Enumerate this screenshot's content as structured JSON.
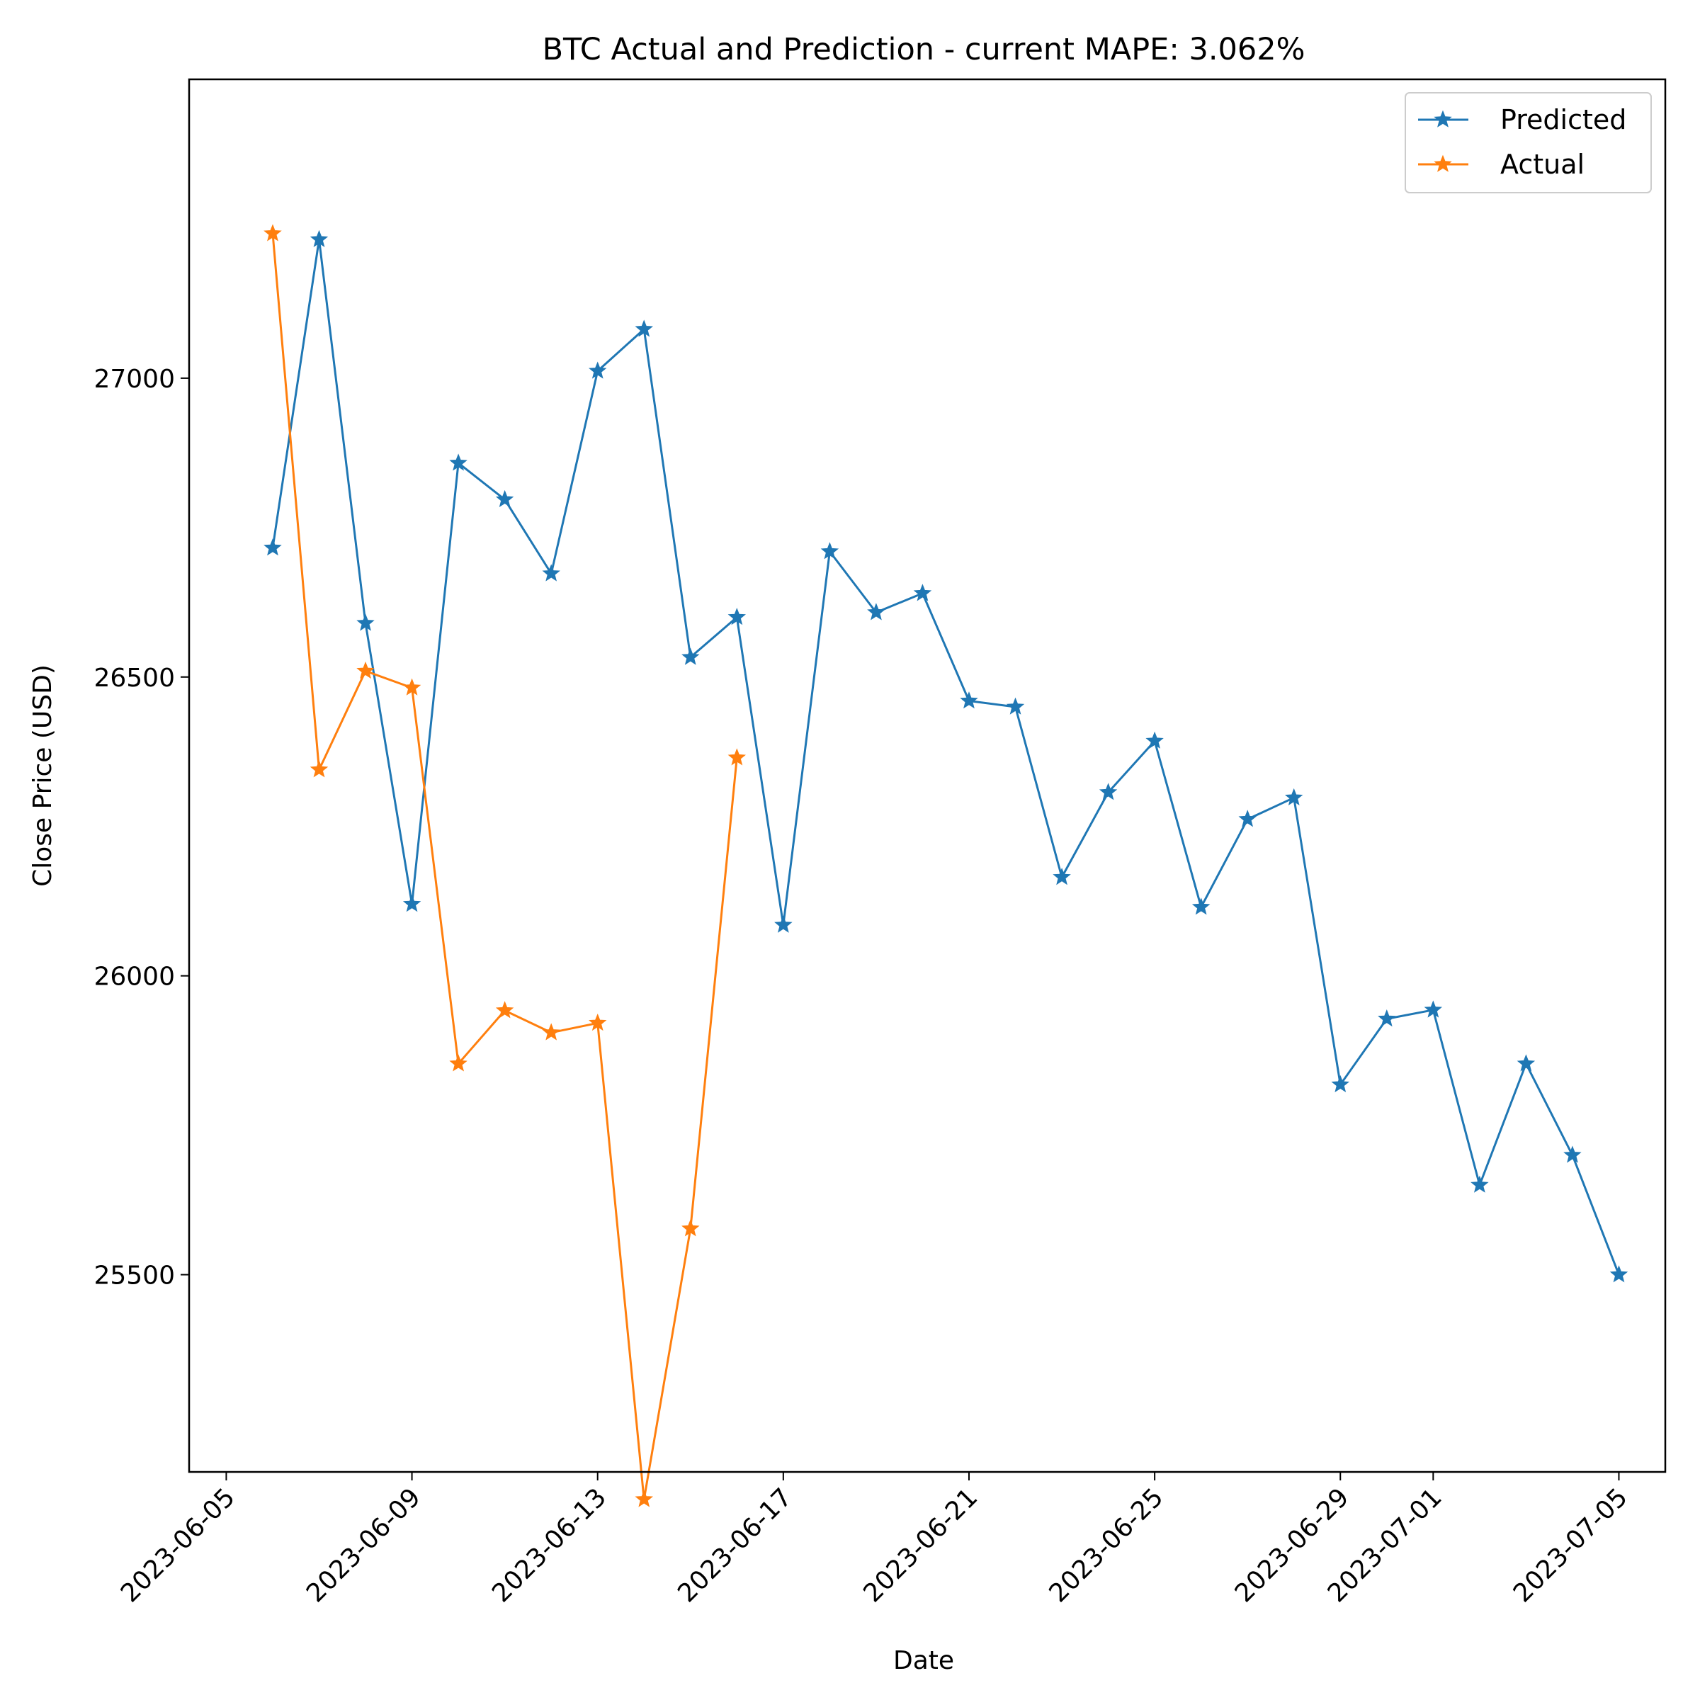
{
  "chart_data": {
    "type": "line",
    "title": "BTC Actual and Prediction - current MAPE: 3.062%",
    "xlabel": "Date",
    "ylabel": "Close Price (USD)",
    "x_range": [
      "2023-06-05",
      "2023-07-05"
    ],
    "ylim": [
      25170,
      27500
    ],
    "x_ticks": [
      "2023-06-05",
      "2023-06-09",
      "2023-06-13",
      "2023-06-17",
      "2023-06-21",
      "2023-06-25",
      "2023-06-29",
      "2023-07-01",
      "2023-07-05"
    ],
    "y_ticks": [
      25500,
      26000,
      26500,
      27000
    ],
    "grid": false,
    "legend_position": "top-right",
    "series": [
      {
        "name": "Predicted",
        "color": "#1f77b4",
        "marker": "star",
        "x": [
          "2023-06-06",
          "2023-06-07",
          "2023-06-08",
          "2023-06-09",
          "2023-06-10",
          "2023-06-11",
          "2023-06-12",
          "2023-06-13",
          "2023-06-14",
          "2023-06-15",
          "2023-06-16",
          "2023-06-17",
          "2023-06-18",
          "2023-06-19",
          "2023-06-20",
          "2023-06-21",
          "2023-06-22",
          "2023-06-23",
          "2023-06-24",
          "2023-06-25",
          "2023-06-26",
          "2023-06-27",
          "2023-06-28",
          "2023-06-29",
          "2023-06-30",
          "2023-07-01",
          "2023-07-02",
          "2023-07-03",
          "2023-07-04",
          "2023-07-05"
        ],
        "values": [
          26716,
          27232,
          26590,
          26120,
          26858,
          26797,
          26673,
          27012,
          27082,
          26533,
          26600,
          26085,
          26710,
          26608,
          26640,
          26460,
          26450,
          26165,
          26307,
          26393,
          26115,
          26262,
          26298,
          25818,
          25928,
          25943,
          25650,
          25853,
          25700,
          25500
        ]
      },
      {
        "name": "Actual",
        "color": "#ff7f0e",
        "marker": "star",
        "x": [
          "2023-06-06",
          "2023-06-07",
          "2023-06-08",
          "2023-06-09",
          "2023-06-10",
          "2023-06-11",
          "2023-06-12",
          "2023-06-13",
          "2023-06-14",
          "2023-06-15",
          "2023-06-16"
        ],
        "values": [
          27242,
          26345,
          26510,
          26482,
          25853,
          25942,
          25905,
          25921,
          25124,
          25577,
          26365
        ]
      }
    ]
  }
}
